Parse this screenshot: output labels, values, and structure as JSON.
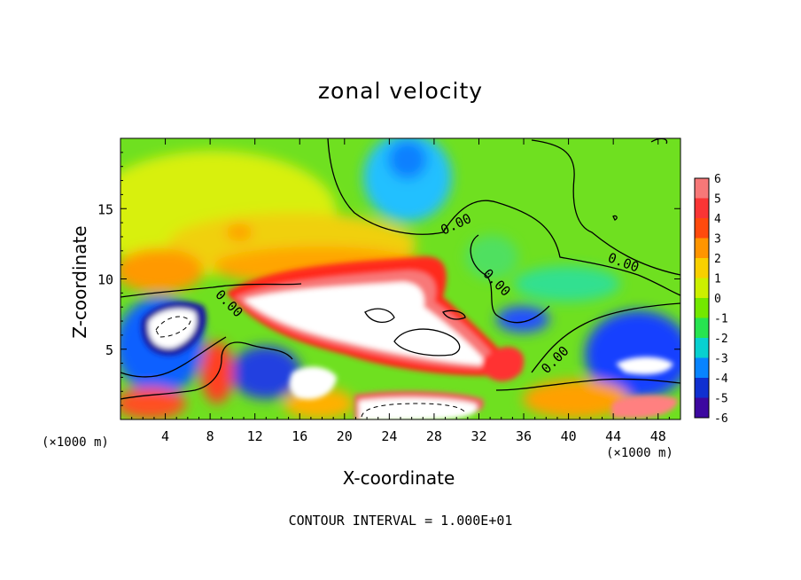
{
  "chart_data": {
    "type": "heatmap",
    "title": "zonal velocity",
    "xlabel": "X-coordinate",
    "ylabel": "Z-coordinate",
    "x_units": "(×1000 m)",
    "xlim": [
      0,
      50
    ],
    "ylim": [
      0,
      20
    ],
    "x_ticks": [
      "4",
      "8",
      "12",
      "16",
      "20",
      "24",
      "28",
      "32",
      "36",
      "40",
      "44",
      "48"
    ],
    "x_tick_values": [
      4,
      8,
      12,
      16,
      20,
      24,
      28,
      32,
      36,
      40,
      44,
      48
    ],
    "y_ticks": [
      "5",
      "10",
      "15"
    ],
    "y_tick_values": [
      5,
      10,
      15
    ],
    "colorbar_ticks": [
      "6",
      "5",
      "4",
      "3",
      "2",
      "1",
      "0",
      "-1",
      "-2",
      "-3",
      "-4",
      "-5",
      "-6"
    ],
    "colorbar_values": [
      6,
      5,
      4,
      3,
      2,
      1,
      0,
      -1,
      -2,
      -3,
      -4,
      -5,
      -6
    ],
    "colorbar_colors": [
      "#f8a0a0",
      "#f55050",
      "#ff1a1a",
      "#ff7a00",
      "#ffb000",
      "#f0f000",
      "#a8f000",
      "#3ee000",
      "#10e8a0",
      "#00b8ff",
      "#1050ff",
      "#1010a0",
      "#6a00a0"
    ],
    "contour_labels": [
      "0.00",
      "0.00",
      "0.00",
      "0.00",
      "0.00"
    ],
    "contour_interval_text": "CONTOUR INTERVAL = 1.000E+01",
    "regions": [
      {
        "name": "upper-left-yellow",
        "x": [
          0,
          20
        ],
        "z": [
          11,
          20
        ],
        "value": 1.5
      },
      {
        "name": "jet-max",
        "x": [
          9,
          32
        ],
        "z": [
          4,
          10
        ],
        "value": 6
      },
      {
        "name": "upper-blue",
        "x": [
          22,
          30
        ],
        "z": [
          14,
          20
        ],
        "value": -3
      },
      {
        "name": "lower-left-blue",
        "x": [
          0,
          8
        ],
        "z": [
          3,
          9
        ],
        "value": -4
      },
      {
        "name": "lower-right-blue",
        "x": [
          42,
          50
        ],
        "z": [
          2,
          8
        ],
        "value": -5
      },
      {
        "name": "surface-max",
        "x": [
          15,
          33
        ],
        "z": [
          0,
          3
        ],
        "value": 6
      }
    ]
  },
  "footer": "CONTOUR INTERVAL = 1.000E+01"
}
